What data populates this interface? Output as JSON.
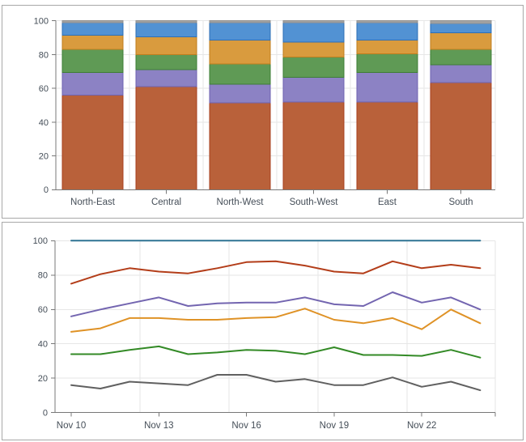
{
  "chart_data": [
    {
      "type": "bar",
      "title": "",
      "stacked": true,
      "percent_total": 100,
      "categories": [
        "North-East",
        "Central",
        "North-West",
        "South-West",
        "East",
        "South"
      ],
      "series": [
        {
          "name": "rust",
          "color": "#b9613a",
          "border_color": "#a8401f",
          "values": [
            56,
            61,
            51.5,
            52,
            52,
            63.5
          ]
        },
        {
          "name": "purple",
          "color": "#8c82c4",
          "border_color": "#6e62b0",
          "values": [
            13.5,
            10,
            11,
            14.5,
            17.5,
            10.5
          ]
        },
        {
          "name": "green",
          "color": "#5f9a55",
          "border_color": "#3e7e35",
          "values": [
            13.5,
            9,
            12,
            12,
            11,
            9
          ]
        },
        {
          "name": "orange",
          "color": "#d99b3e",
          "border_color": "#bf7d1d",
          "values": [
            8.5,
            10.5,
            14,
            9,
            8,
            10
          ]
        },
        {
          "name": "blue",
          "color": "#5292d3",
          "border_color": "#2e6fb5",
          "values": [
            7.5,
            8.5,
            10.5,
            11.5,
            10.5,
            5.5
          ]
        },
        {
          "name": "gray",
          "color": "#a3a3a3",
          "border_color": "#909090",
          "values": [
            1,
            1,
            1,
            1,
            1,
            1.5
          ]
        }
      ],
      "ylim": [
        0,
        100
      ],
      "yticks": [
        0,
        20,
        40,
        60,
        80,
        100
      ],
      "grid": true,
      "legend": "none"
    },
    {
      "type": "line",
      "title": "",
      "x": [
        "Nov 10",
        "Nov 11",
        "Nov 12",
        "Nov 13",
        "Nov 14",
        "Nov 15",
        "Nov 16",
        "Nov 17",
        "Nov 18",
        "Nov 19",
        "Nov 20",
        "Nov 21",
        "Nov 22",
        "Nov 23",
        "Nov 24"
      ],
      "x_tick_labels": [
        "Nov 10",
        "Nov 13",
        "Nov 16",
        "Nov 19",
        "Nov 22"
      ],
      "x_tick_indices": [
        0,
        3,
        6,
        9,
        12
      ],
      "series": [
        {
          "name": "gray",
          "color": "#606060",
          "values": [
            16,
            14,
            18,
            17,
            16,
            22,
            22,
            18,
            19.5,
            16,
            16,
            20.5,
            15,
            18,
            13
          ]
        },
        {
          "name": "green",
          "color": "#338a26",
          "values": [
            34,
            34,
            36.5,
            38.5,
            34,
            35,
            36.5,
            36,
            34,
            38,
            33.5,
            33.5,
            33,
            36.5,
            32
          ]
        },
        {
          "name": "orange",
          "color": "#df9226",
          "values": [
            47,
            49,
            55,
            55,
            54,
            54,
            55,
            55.5,
            60.5,
            54,
            52,
            55,
            48.5,
            60,
            52
          ]
        },
        {
          "name": "purple",
          "color": "#7365b0",
          "values": [
            56,
            60,
            63.5,
            67,
            62,
            63.5,
            64,
            64,
            67,
            63,
            62,
            70,
            64,
            67,
            60
          ]
        },
        {
          "name": "red",
          "color": "#b33d19",
          "values": [
            75,
            80.5,
            84,
            82,
            81,
            84,
            87.5,
            88,
            85.5,
            82,
            81,
            88,
            84,
            86,
            84
          ]
        },
        {
          "name": "blue",
          "color": "#2e7393",
          "values": [
            100,
            100,
            100,
            100,
            100,
            100,
            100,
            100,
            100,
            100,
            100,
            100,
            100,
            100,
            100
          ]
        }
      ],
      "ylim": [
        0,
        100
      ],
      "yticks": [
        0,
        20,
        40,
        60,
        80,
        100
      ],
      "grid": true,
      "legend": "none"
    }
  ]
}
